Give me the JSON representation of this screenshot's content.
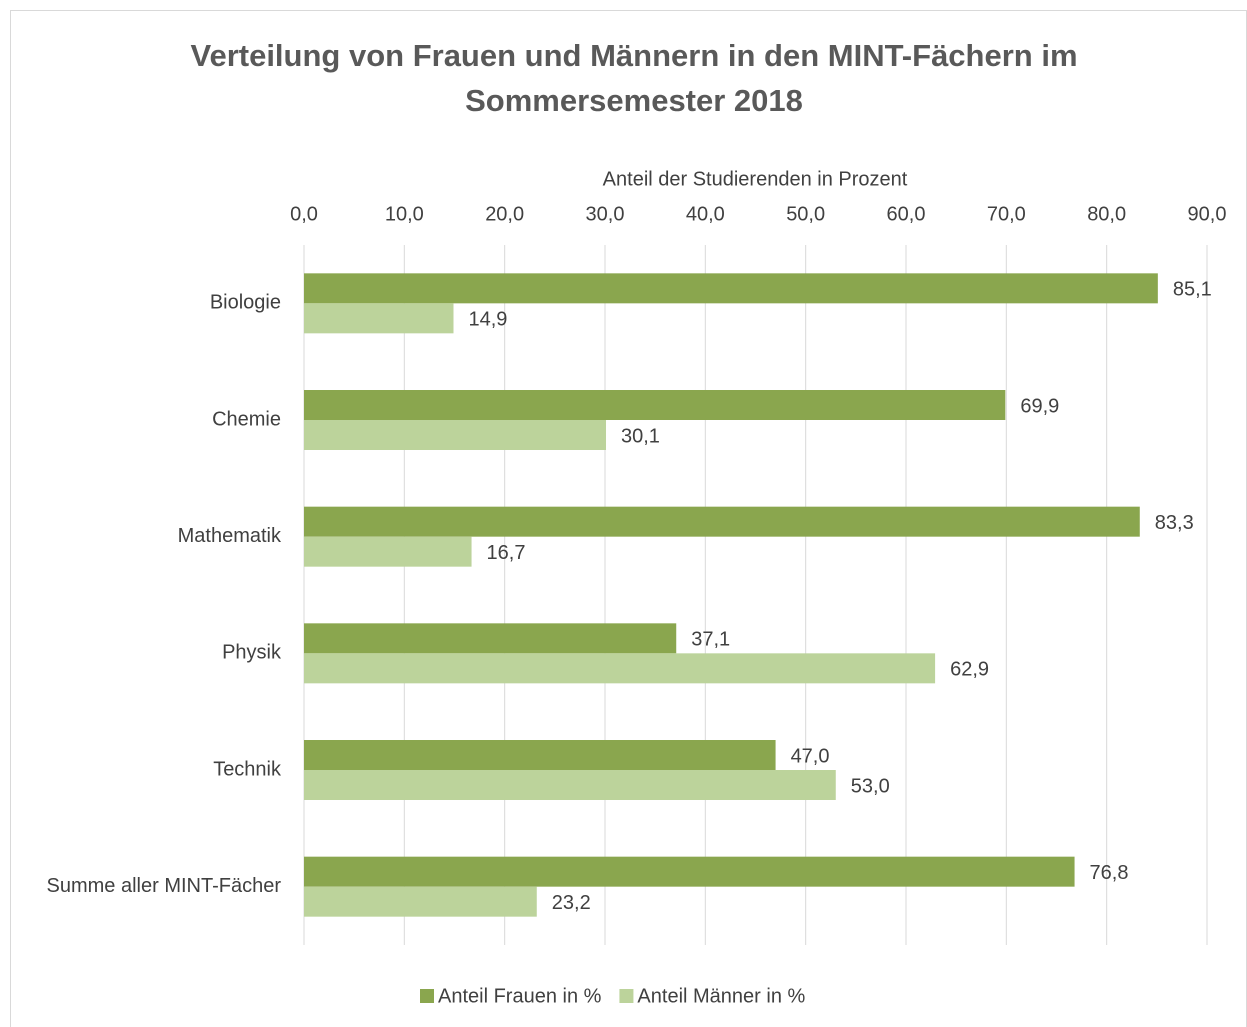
{
  "chart_data": {
    "type": "barh",
    "title": [
      "Verteilung von Frauen und Männern in den MINT-Fächern im",
      "Sommersemester 2018"
    ],
    "x_label": "Anteil der Studierenden in Prozent",
    "categories": [
      "Biologie",
      "Chemie",
      "Mathematik",
      "Physik",
      "Technik",
      "Summe aller MINT-Fächer"
    ],
    "series": [
      {
        "name": "Anteil Frauen in %",
        "color": "#8aa64e",
        "values": [
          85.1,
          69.9,
          83.3,
          37.1,
          47.0,
          76.8
        ],
        "value_labels": [
          "85,1",
          "69,9",
          "83,3",
          "37,1",
          "47,0",
          "76,8"
        ]
      },
      {
        "name": "Anteil Männer in %",
        "color": "#bcd39b",
        "values": [
          14.9,
          30.1,
          16.7,
          62.9,
          53.0,
          23.2
        ],
        "value_labels": [
          "14,9",
          "30,1",
          "16,7",
          "62,9",
          "53,0",
          "23,2"
        ]
      }
    ],
    "xlim": [
      0,
      90
    ],
    "xticks": [
      {
        "value": 0,
        "label": "0,0"
      },
      {
        "value": 10,
        "label": "10,0"
      },
      {
        "value": 20,
        "label": "20,0"
      },
      {
        "value": 30,
        "label": "30,0"
      },
      {
        "value": 40,
        "label": "40,0"
      },
      {
        "value": 50,
        "label": "50,0"
      },
      {
        "value": 60,
        "label": "60,0"
      },
      {
        "value": 70,
        "label": "70,0"
      },
      {
        "value": 80,
        "label": "80,0"
      },
      {
        "value": 90,
        "label": "90,0"
      }
    ],
    "grid": true,
    "legend": "bottom"
  }
}
